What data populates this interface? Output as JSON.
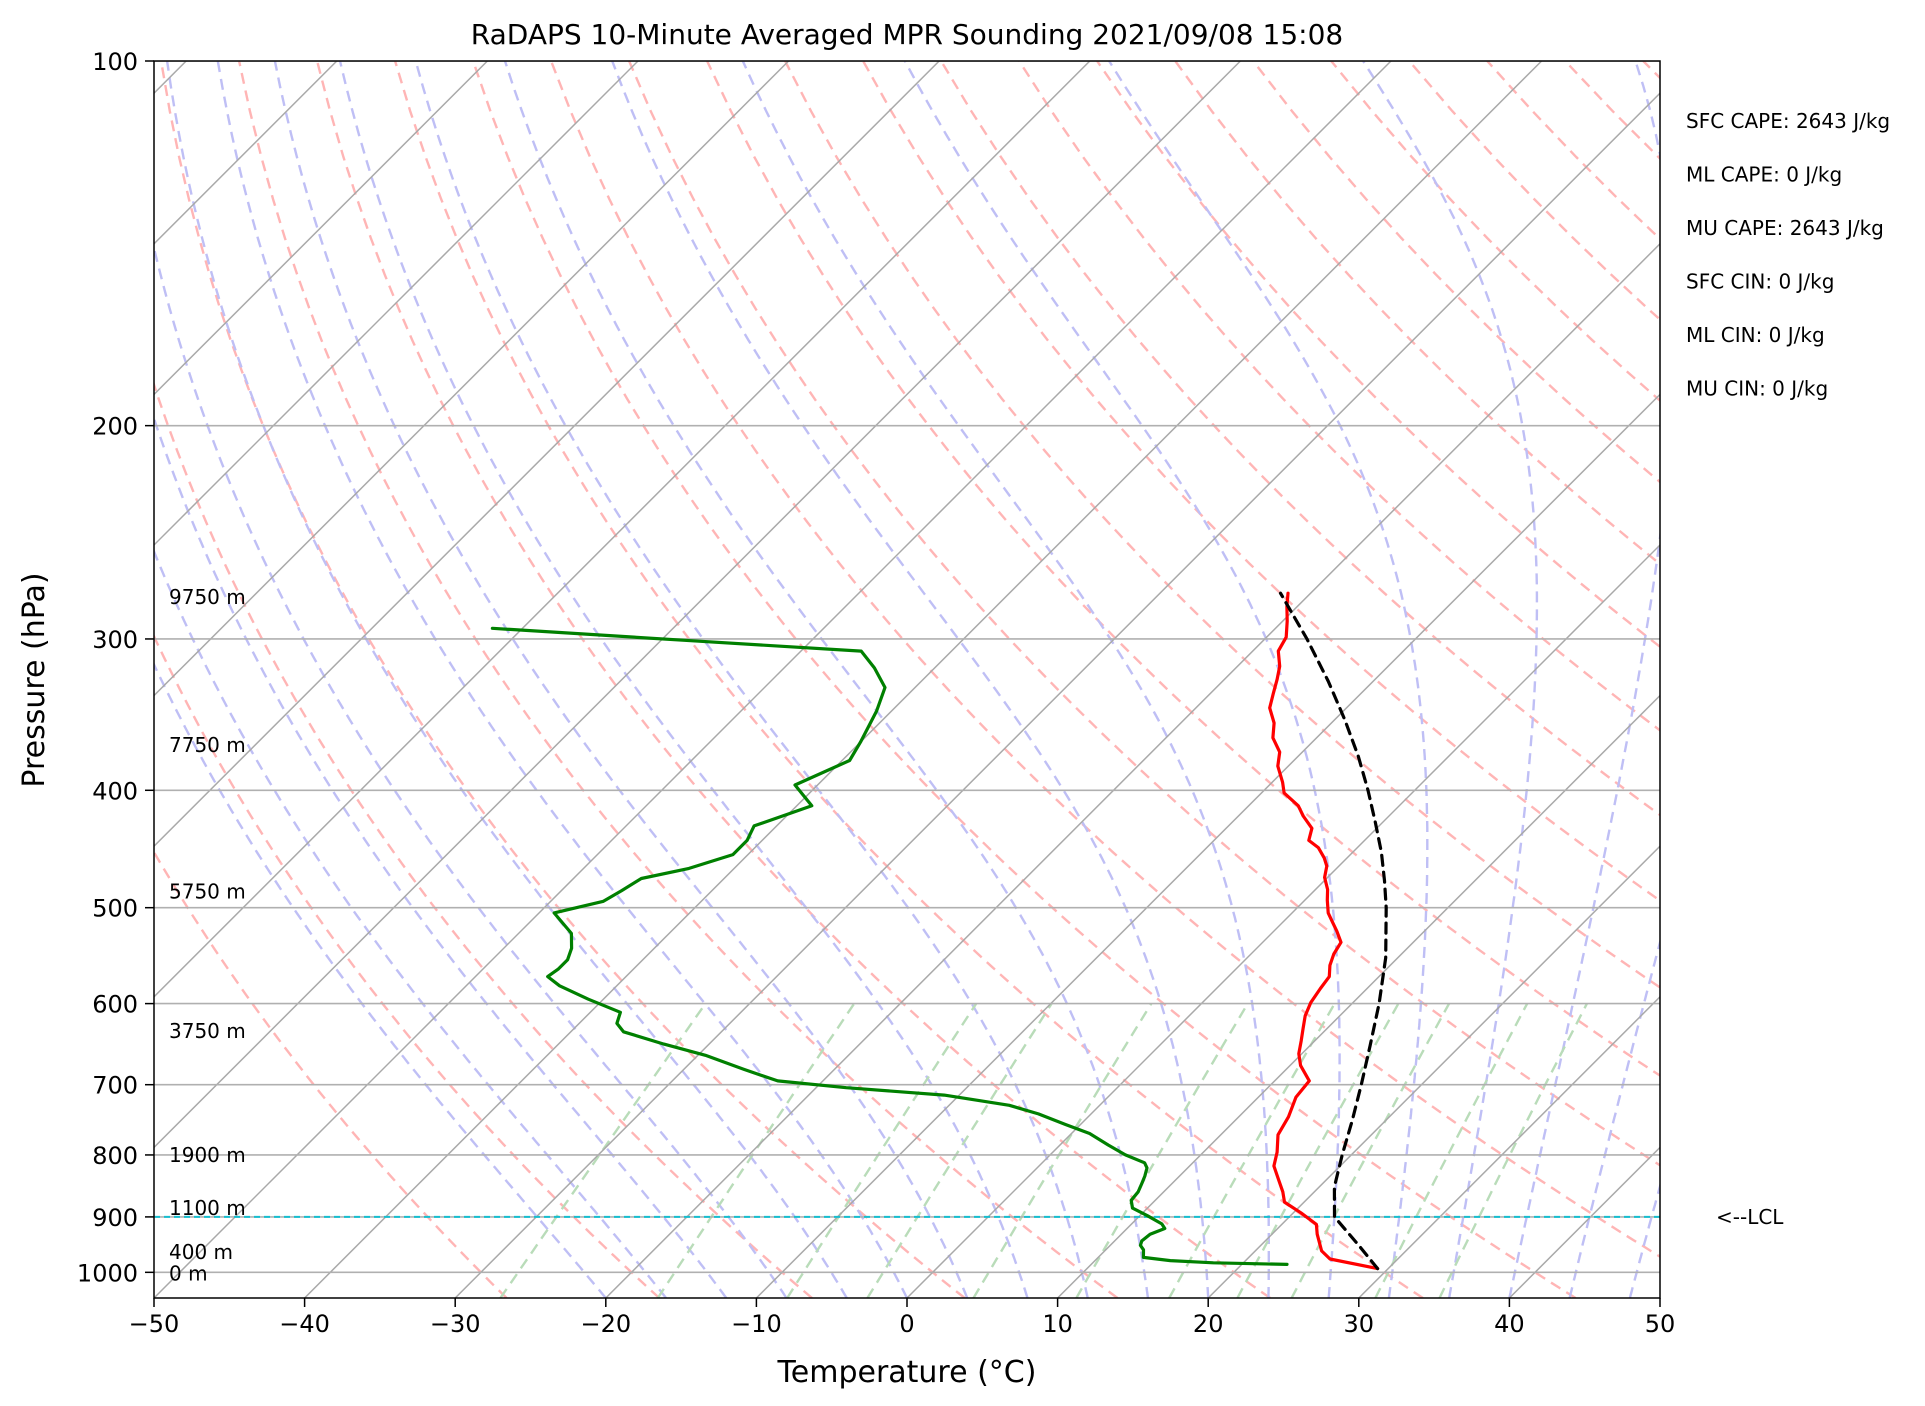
{
  "chart_data": {
    "type": "line",
    "title": "RaDAPS 10-Minute Averaged MPR Sounding 2021/09/08 15:08",
    "xlabel": "Temperature (°C)",
    "ylabel": "Pressure (hPa)",
    "xlim": [
      -50,
      50
    ],
    "ylim": [
      1050,
      100
    ],
    "yscale": "log",
    "skew": "skew-T log-p",
    "grid": true,
    "x_ticks": [
      -50,
      -40,
      -30,
      -20,
      -10,
      0,
      10,
      20,
      30,
      40,
      50
    ],
    "x_tick_labels": [
      "−50",
      "−40",
      "−30",
      "−20",
      "−10",
      "0",
      "10",
      "20",
      "30",
      "40",
      "50"
    ],
    "y_ticks": [
      100,
      200,
      300,
      400,
      500,
      600,
      700,
      800,
      900,
      1000
    ],
    "y_tick_labels": [
      "100",
      "200",
      "300",
      "400",
      "500",
      "600",
      "700",
      "800",
      "900",
      "1000"
    ],
    "height_labels": [
      {
        "text": "0 m",
        "p": 1002
      },
      {
        "text": "400 m",
        "p": 962
      },
      {
        "text": "1100 m",
        "p": 885
      },
      {
        "text": "1900 m",
        "p": 800
      },
      {
        "text": "3750 m",
        "p": 632
      },
      {
        "text": "5750 m",
        "p": 485
      },
      {
        "text": "7750 m",
        "p": 367
      },
      {
        "text": "9750 m",
        "p": 277
      }
    ],
    "indices": [
      "SFC CAPE: 2643 J/kg",
      "ML CAPE: 0 J/kg",
      "MU CAPE: 2643 J/kg",
      "SFC CIN: 0 J/kg",
      "ML CIN: 0 J/kg",
      "MU CIN: 0 J/kg"
    ],
    "lcl": {
      "label": "<--LCL",
      "p": 900
    },
    "series": [
      {
        "role": "temperature",
        "color": "#ff0000",
        "points": [
          [
            29.3,
            993
          ],
          [
            25.5,
            975
          ],
          [
            24.4,
            960
          ],
          [
            23.0,
            930
          ],
          [
            22.3,
            913
          ],
          [
            20.5,
            893
          ],
          [
            18.7,
            875
          ],
          [
            17.9,
            858
          ],
          [
            16.9,
            840
          ],
          [
            15.6,
            817
          ],
          [
            14.9,
            796
          ],
          [
            13.8,
            770
          ],
          [
            13.3,
            744
          ],
          [
            12.5,
            717
          ],
          [
            12.3,
            695
          ],
          [
            10.7,
            675
          ],
          [
            9.8,
            660
          ],
          [
            9.1,
            644
          ],
          [
            8.4,
            629
          ],
          [
            7.7,
            614
          ],
          [
            7.2,
            599
          ],
          [
            6.9,
            583
          ],
          [
            6.7,
            570
          ],
          [
            6.0,
            558
          ],
          [
            5.5,
            546
          ],
          [
            5.2,
            534
          ],
          [
            4.2,
            523
          ],
          [
            3.4,
            515
          ],
          [
            2.4,
            505
          ],
          [
            1.5,
            493
          ],
          [
            0.8,
            483
          ],
          [
            -0.2,
            472
          ],
          [
            -0.8,
            462
          ],
          [
            -1.5,
            455
          ],
          [
            -2.6,
            446
          ],
          [
            -3.7,
            440
          ],
          [
            -4.3,
            430
          ],
          [
            -5.7,
            420
          ],
          [
            -6.7,
            412
          ],
          [
            -8.5,
            402
          ],
          [
            -9.3,
            394
          ],
          [
            -10.7,
            382
          ],
          [
            -11.5,
            372
          ],
          [
            -12.9,
            362
          ],
          [
            -13.8,
            352
          ],
          [
            -15.1,
            342
          ],
          [
            -15.8,
            333
          ],
          [
            -16.5,
            324
          ],
          [
            -17.2,
            316
          ],
          [
            -18.3,
            307
          ],
          [
            -18.7,
            299
          ],
          [
            -19.7,
            290
          ],
          [
            -20.7,
            282
          ],
          [
            -21.5,
            275
          ]
        ]
      },
      {
        "role": "dewpoint",
        "color": "#008000",
        "points": [
          [
            23.0,
            985
          ],
          [
            18.0,
            982
          ],
          [
            15.0,
            978
          ],
          [
            13.0,
            972
          ],
          [
            12.5,
            958
          ],
          [
            12.0,
            950
          ],
          [
            11.8,
            942
          ],
          [
            11.9,
            930
          ],
          [
            12.5,
            920
          ],
          [
            12.0,
            912
          ],
          [
            10.5,
            898
          ],
          [
            9.0,
            885
          ],
          [
            8.4,
            872
          ],
          [
            8.3,
            858
          ],
          [
            8.0,
            845
          ],
          [
            7.7,
            833
          ],
          [
            7.3,
            820
          ],
          [
            6.8,
            812
          ],
          [
            5.0,
            800
          ],
          [
            3.2,
            785
          ],
          [
            1.2,
            768
          ],
          [
            -1.0,
            755
          ],
          [
            -3.5,
            740
          ],
          [
            -6.0,
            728
          ],
          [
            -11.0,
            714
          ],
          [
            -18.0,
            704
          ],
          [
            -23.0,
            695
          ],
          [
            -26.0,
            680
          ],
          [
            -29.5,
            662
          ],
          [
            -33.0,
            648
          ],
          [
            -36.5,
            633
          ],
          [
            -37.5,
            623
          ],
          [
            -38.0,
            610
          ],
          [
            -41.0,
            595
          ],
          [
            -43.8,
            580
          ],
          [
            -45.2,
            570
          ],
          [
            -45.0,
            562
          ],
          [
            -45.0,
            552
          ],
          [
            -45.5,
            540
          ],
          [
            -46.5,
            525
          ],
          [
            -49.0,
            505
          ],
          [
            -46.5,
            494
          ],
          [
            -46.0,
            484
          ],
          [
            -45.5,
            473
          ],
          [
            -43.0,
            464
          ],
          [
            -41.0,
            452
          ],
          [
            -41.0,
            440
          ],
          [
            -41.5,
            428
          ],
          [
            -39.0,
            412
          ],
          [
            -41.5,
            396
          ],
          [
            -39.5,
            378
          ],
          [
            -40.0,
            365
          ],
          [
            -41.0,
            344
          ],
          [
            -42.0,
            329
          ],
          [
            -44.0,
            317
          ],
          [
            -46.0,
            307
          ],
          [
            -58.0,
            301
          ],
          [
            -72.0,
            294
          ]
        ]
      },
      {
        "role": "parcel",
        "color": "#000000",
        "dashed": true,
        "points": [
          [
            29.3,
            993
          ],
          [
            26.5,
            950
          ],
          [
            23.0,
            900
          ],
          [
            21.0,
            850
          ],
          [
            19.4,
            800
          ],
          [
            17.8,
            750
          ],
          [
            16.0,
            700
          ],
          [
            14.0,
            650
          ],
          [
            11.8,
            600
          ],
          [
            9.2,
            550
          ],
          [
            5.9,
            500
          ],
          [
            4.0,
            475
          ],
          [
            1.9,
            450
          ],
          [
            -0.5,
            425
          ],
          [
            -3.1,
            400
          ],
          [
            -6.0,
            375
          ],
          [
            -9.3,
            350
          ],
          [
            -13.0,
            325
          ],
          [
            -17.2,
            300
          ],
          [
            -22.0,
            275
          ]
        ]
      }
    ]
  },
  "reference_lines": {
    "isotherm_color": "#a9a9a9",
    "dry_adiabat_color": "#ffb5b5",
    "moist_adiabat_color": "#bfbff5",
    "mixing_ratio_color": "#b9dcb9",
    "lcl_color": "#17becf"
  }
}
